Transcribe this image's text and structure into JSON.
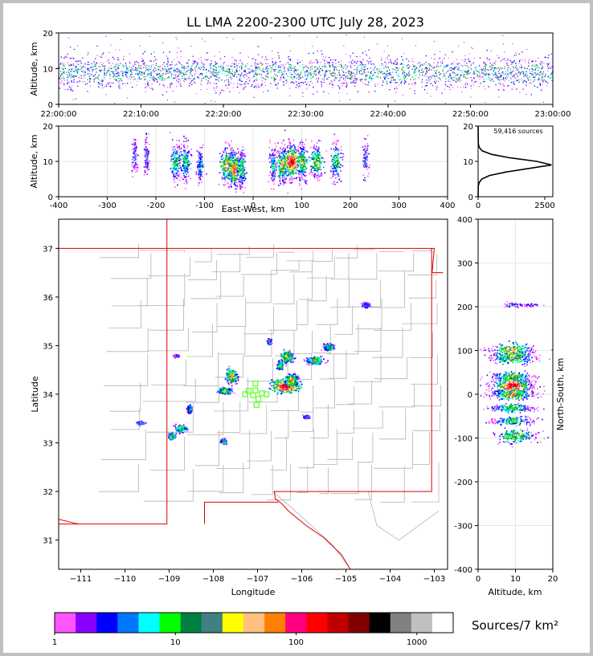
{
  "chart_data": [
    {
      "type": "scatter",
      "panel": "altitude-time",
      "title": "LL LMA 2200-2300 UTC July 28, 2023",
      "xlabel": "",
      "ylabel": "Altitude, km",
      "x_ticks": [
        "22:00:00",
        "22:10:00",
        "22:20:00",
        "22:30:00",
        "22:40:00",
        "22:50:00",
        "23:00:00"
      ],
      "x_range_minutes": [
        0,
        60
      ],
      "y_ticks": [
        0,
        10,
        20
      ],
      "ylim": [
        0,
        20
      ],
      "band_altitude_km": [
        5,
        15
      ],
      "peak_altitude_km": 9
    },
    {
      "type": "scatter",
      "panel": "altitude-eastwest",
      "xlabel": "East-West, km",
      "ylabel": "Altitude, km",
      "x_ticks": [
        -400,
        -300,
        -200,
        -100,
        0,
        100,
        200,
        300,
        400
      ],
      "xlim": [
        -400,
        400
      ],
      "y_ticks": [
        0,
        10,
        20
      ],
      "ylim": [
        0,
        20
      ],
      "clusters": [
        {
          "x": -245,
          "alt": 12,
          "spread": 6,
          "intensity": 0.15
        },
        {
          "x": -220,
          "alt": 11,
          "spread": 6,
          "intensity": 0.15
        },
        {
          "x": -160,
          "alt": 10,
          "spread": 10,
          "intensity": 0.45
        },
        {
          "x": -140,
          "alt": 10,
          "spread": 10,
          "intensity": 0.45
        },
        {
          "x": -110,
          "alt": 9,
          "spread": 6,
          "intensity": 0.3
        },
        {
          "x": -55,
          "alt": 9,
          "spread": 14,
          "intensity": 0.7
        },
        {
          "x": -40,
          "alt": 8,
          "spread": 10,
          "intensity": 0.9
        },
        {
          "x": -25,
          "alt": 8,
          "spread": 8,
          "intensity": 0.5
        },
        {
          "x": 40,
          "alt": 9,
          "spread": 8,
          "intensity": 0.35
        },
        {
          "x": 60,
          "alt": 9,
          "spread": 10,
          "intensity": 0.7
        },
        {
          "x": 78,
          "alt": 10,
          "spread": 14,
          "intensity": 1.0
        },
        {
          "x": 100,
          "alt": 10,
          "spread": 10,
          "intensity": 0.6
        },
        {
          "x": 130,
          "alt": 10,
          "spread": 12,
          "intensity": 0.6
        },
        {
          "x": 170,
          "alt": 10,
          "spread": 10,
          "intensity": 0.5
        },
        {
          "x": 230,
          "alt": 11,
          "spread": 6,
          "intensity": 0.15
        }
      ]
    },
    {
      "type": "line",
      "panel": "altitude-histogram",
      "annotation": "59,416 sources",
      "x_ticks": [
        0,
        2500
      ],
      "xlim": [
        0,
        2800
      ],
      "y_ticks": [
        0,
        10,
        20
      ],
      "ylim": [
        0,
        20
      ],
      "profile": [
        {
          "alt": 0,
          "count": 0
        },
        {
          "alt": 3,
          "count": 5
        },
        {
          "alt": 4,
          "count": 40
        },
        {
          "alt": 5,
          "count": 140
        },
        {
          "alt": 6,
          "count": 420
        },
        {
          "alt": 7,
          "count": 1050
        },
        {
          "alt": 8,
          "count": 1900
        },
        {
          "alt": 9,
          "count": 2750
        },
        {
          "alt": 10,
          "count": 2200
        },
        {
          "alt": 11,
          "count": 1200
        },
        {
          "alt": 12,
          "count": 500
        },
        {
          "alt": 13,
          "count": 150
        },
        {
          "alt": 14,
          "count": 40
        },
        {
          "alt": 15,
          "count": 10
        },
        {
          "alt": 20,
          "count": 0
        }
      ]
    },
    {
      "type": "scatter",
      "panel": "plan-view-map",
      "xlabel": "Longitude",
      "ylabel": "Latitude",
      "x_ticks": [
        -111,
        -110,
        -109,
        -108,
        -107,
        -106,
        -105,
        -104,
        -103
      ],
      "xlim": [
        -111.5,
        -102.7
      ],
      "y_ticks": [
        31,
        32,
        33,
        34,
        35,
        36,
        37
      ],
      "ylim": [
        30.4,
        37.6
      ],
      "stations": [
        {
          "lon": -107.28,
          "lat": 34.0
        },
        {
          "lon": -107.2,
          "lat": 34.07
        },
        {
          "lon": -107.1,
          "lat": 33.98
        },
        {
          "lon": -107.05,
          "lat": 34.22
        },
        {
          "lon": -106.98,
          "lat": 33.9
        },
        {
          "lon": -106.9,
          "lat": 34.02
        },
        {
          "lon": -107.05,
          "lat": 34.08
        },
        {
          "lon": -107.02,
          "lat": 33.78
        },
        {
          "lon": -106.8,
          "lat": 34.0
        }
      ],
      "clusters": [
        {
          "lon": -106.38,
          "lat": 34.18,
          "sx": 0.25,
          "sy": 0.12,
          "intensity": 1.0
        },
        {
          "lon": -106.25,
          "lat": 34.3,
          "sx": 0.12,
          "sy": 0.1,
          "intensity": 0.7
        },
        {
          "lon": -106.35,
          "lat": 34.78,
          "sx": 0.12,
          "sy": 0.1,
          "intensity": 0.6
        },
        {
          "lon": -106.5,
          "lat": 34.6,
          "sx": 0.05,
          "sy": 0.08,
          "intensity": 0.5
        },
        {
          "lon": -105.72,
          "lat": 34.7,
          "sx": 0.15,
          "sy": 0.06,
          "intensity": 0.6
        },
        {
          "lon": -105.4,
          "lat": 34.98,
          "sx": 0.1,
          "sy": 0.06,
          "intensity": 0.5
        },
        {
          "lon": -107.6,
          "lat": 34.38,
          "sx": 0.1,
          "sy": 0.12,
          "intensity": 0.7
        },
        {
          "lon": -107.75,
          "lat": 34.08,
          "sx": 0.12,
          "sy": 0.05,
          "intensity": 0.6
        },
        {
          "lon": -108.75,
          "lat": 33.3,
          "sx": 0.1,
          "sy": 0.06,
          "intensity": 0.5
        },
        {
          "lon": -108.95,
          "lat": 33.15,
          "sx": 0.06,
          "sy": 0.05,
          "intensity": 0.55
        },
        {
          "lon": -108.55,
          "lat": 33.7,
          "sx": 0.05,
          "sy": 0.06,
          "intensity": 0.35
        },
        {
          "lon": -107.78,
          "lat": 33.05,
          "sx": 0.06,
          "sy": 0.04,
          "intensity": 0.4
        },
        {
          "lon": -106.75,
          "lat": 35.1,
          "sx": 0.04,
          "sy": 0.05,
          "intensity": 0.3
        },
        {
          "lon": -104.55,
          "lat": 35.85,
          "sx": 0.08,
          "sy": 0.04,
          "intensity": 0.25
        },
        {
          "lon": -105.9,
          "lat": 33.55,
          "sx": 0.05,
          "sy": 0.03,
          "intensity": 0.25
        },
        {
          "lon": -109.65,
          "lat": 33.42,
          "sx": 0.08,
          "sy": 0.03,
          "intensity": 0.2
        },
        {
          "lon": -108.85,
          "lat": 34.8,
          "sx": 0.05,
          "sy": 0.02,
          "intensity": 0.15
        }
      ]
    },
    {
      "type": "scatter",
      "panel": "northsouth-altitude",
      "xlabel": "Altitude, km",
      "ylabel": "North-South, km",
      "x_ticks": [
        0,
        10,
        20
      ],
      "xlim": [
        0,
        20
      ],
      "y_ticks": [
        -400,
        -300,
        -200,
        -100,
        0,
        100,
        200,
        300,
        400
      ],
      "ylim": [
        -400,
        400
      ],
      "clusters": [
        {
          "y": 100,
          "alt": 9,
          "spread": 18,
          "intensity": 0.7
        },
        {
          "y": 85,
          "alt": 9,
          "spread": 14,
          "intensity": 0.6
        },
        {
          "y": 40,
          "alt": 9,
          "spread": 12,
          "intensity": 0.6
        },
        {
          "y": 20,
          "alt": 9,
          "spread": 18,
          "intensity": 1.0
        },
        {
          "y": 0,
          "alt": 9,
          "spread": 12,
          "intensity": 0.7
        },
        {
          "y": -30,
          "alt": 9,
          "spread": 10,
          "intensity": 0.5
        },
        {
          "y": -60,
          "alt": 9,
          "spread": 10,
          "intensity": 0.45
        },
        {
          "y": -95,
          "alt": 10,
          "spread": 16,
          "intensity": 0.55
        },
        {
          "y": 205,
          "alt": 11,
          "spread": 6,
          "intensity": 0.12
        }
      ]
    },
    {
      "type": "heatmap",
      "panel": "colorbar",
      "label": "Sources/7 km²",
      "tick_labels": [
        "1",
        "10",
        "100",
        "1000"
      ],
      "scale": "log",
      "range": [
        1,
        2000
      ],
      "colors": [
        "#ff55ff",
        "#8800ff",
        "#0000ff",
        "#0077ff",
        "#00ffff",
        "#00ff00",
        "#008040",
        "#408080",
        "#ffff00",
        "#ffc080",
        "#ff8000",
        "#ff0080",
        "#ff0000",
        "#c00000",
        "#800000",
        "#000000",
        "#808080",
        "#c0c0c0",
        "#ffffff"
      ]
    }
  ]
}
